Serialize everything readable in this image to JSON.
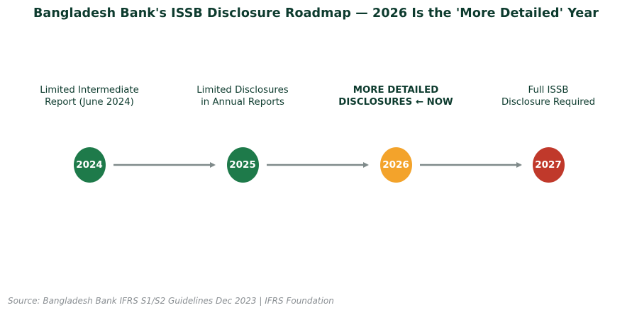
{
  "title": "Bangladesh Bank's ISSB Disclosure Roadmap — 2026 Is the 'More Detailed' Year",
  "colors": {
    "green": "#1e7a4a",
    "amber": "#f3a32b",
    "red": "#c0392b",
    "arrow": "#7f8a8a",
    "text": "#0d3b2e"
  },
  "milestones": [
    {
      "year": "2024",
      "label": "Limited Intermediate\nReport (June 2024)",
      "status": "done",
      "color": "#1e7a4a"
    },
    {
      "year": "2025",
      "label": "Limited Disclosures\nin Annual Reports",
      "status": "done",
      "color": "#1e7a4a"
    },
    {
      "year": "2026",
      "label": "MORE DETAILED\nDISCLOSURES ← NOW",
      "status": "current",
      "color": "#f3a32b"
    },
    {
      "year": "2027",
      "label": "Full ISSB\nDisclosure Required",
      "status": "future",
      "color": "#c0392b"
    }
  ],
  "source": "Source: Bangladesh Bank IFRS S1/S2 Guidelines Dec 2023 | IFRS Foundation"
}
